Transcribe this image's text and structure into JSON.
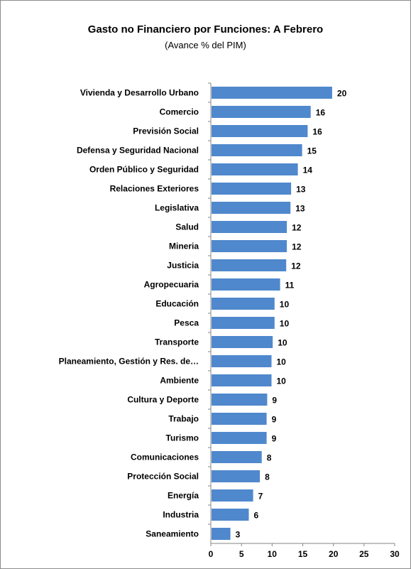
{
  "chart_data": {
    "type": "bar",
    "orientation": "horizontal",
    "title": "Gasto no Financiero por Funciones: A  Febrero",
    "subtitle": "(Avance % del PIM)",
    "categories": [
      "Vivienda y Desarrollo Urbano",
      "Comercio",
      "Previsión Social",
      "Defensa y Seguridad  Nacional",
      "Orden Público  y Seguridad",
      "Relaciones Exteriores",
      "Legislativa",
      "Salud",
      "Mineria",
      "Justicia",
      "Agropecuaria",
      "Educación",
      "Pesca",
      "Transporte",
      "Planeamiento, Gestión y Res. de…",
      "Ambiente",
      "Cultura y Deporte",
      "Trabajo",
      "Turismo",
      "Comunicaciones",
      "Protección Social",
      "Energía",
      "Industria",
      "Saneamiento"
    ],
    "values": [
      20,
      16,
      16,
      15,
      14,
      13,
      13,
      12,
      12,
      12,
      11,
      10,
      10,
      10,
      10,
      10,
      9,
      9,
      9,
      8,
      8,
      7,
      6,
      3
    ],
    "plotted_values": [
      19.8,
      16.3,
      15.8,
      14.9,
      14.2,
      13.1,
      13.0,
      12.4,
      12.4,
      12.3,
      11.3,
      10.4,
      10.4,
      10.1,
      9.9,
      9.9,
      9.2,
      9.1,
      9.1,
      8.3,
      8.0,
      6.9,
      6.2,
      3.2
    ],
    "xlim": [
      0,
      30
    ],
    "xticks": [
      "0",
      "5",
      "10",
      "15",
      "20",
      "25",
      "30"
    ],
    "bar_color": "#4f88cc",
    "grid": false,
    "legend": "none"
  }
}
